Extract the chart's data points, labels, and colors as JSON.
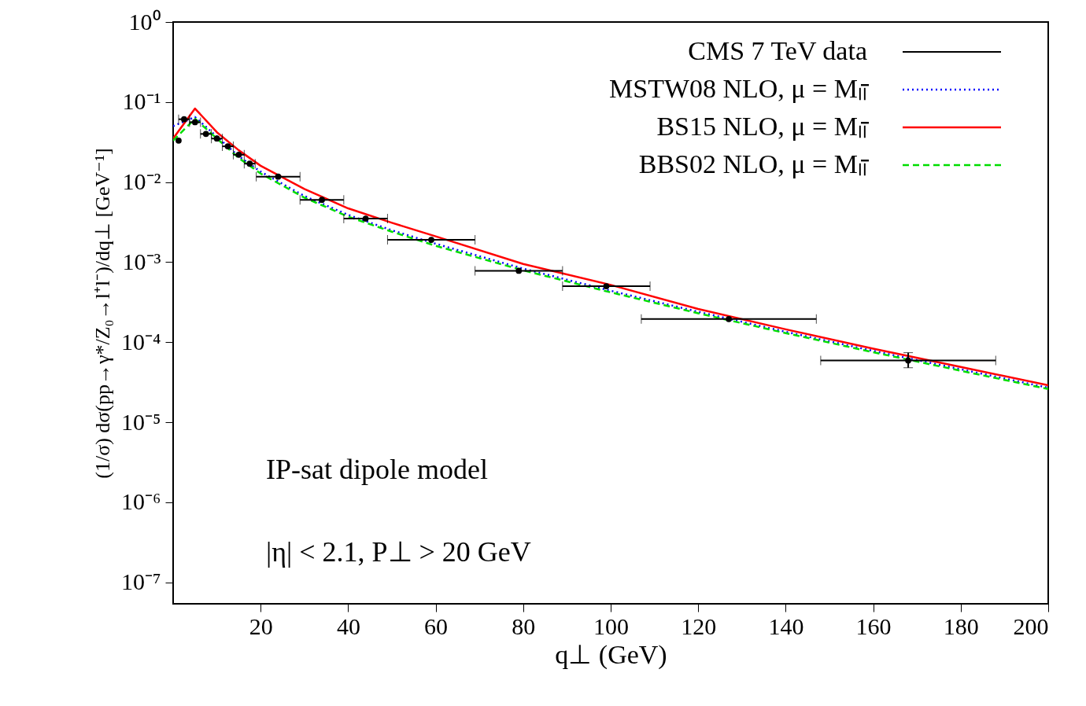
{
  "chart_data": {
    "type": "line",
    "xlabel": "q⊥ (GeV)",
    "ylabel": "(1/σ) dσ(pp→γ*/Z₀→l⁺l⁻)/dq⊥ [GeV⁻¹]",
    "log": "y",
    "xlim": [
      0,
      200
    ],
    "xticks": [
      20,
      40,
      60,
      80,
      100,
      120,
      140,
      160,
      180,
      200
    ],
    "ylim": [
      5.4e-08,
      1
    ],
    "yticks": [
      {
        "value": 1,
        "label": "10⁰"
      },
      {
        "value": 0.1,
        "label": "10⁻¹"
      },
      {
        "value": 0.01,
        "label": "10⁻²"
      },
      {
        "value": 0.001,
        "label": "10⁻³"
      },
      {
        "value": 0.0001,
        "label": "10⁻⁴"
      },
      {
        "value": 1e-05,
        "label": "10⁻⁵"
      },
      {
        "value": 1e-06,
        "label": "10⁻⁶"
      },
      {
        "value": 1e-07,
        "label": "10⁻⁷"
      }
    ],
    "grid": false,
    "legend": "top right",
    "annotations": [
      "IP-sat dipole model",
      "|η| < 2.1, P⊥ > 20 GeV"
    ],
    "series": [
      {
        "name": "CMS 7 TeV data",
        "type": "scatter",
        "color": "#000000",
        "marker": "circle",
        "x": [
          1.25,
          2.5,
          5,
          7.5,
          10,
          12.5,
          15,
          17.5,
          24,
          34,
          44,
          59,
          79,
          99,
          127,
          168
        ],
        "values": [
          0.033,
          0.061,
          0.056,
          0.04,
          0.035,
          0.028,
          0.022,
          0.017,
          0.0117,
          0.006,
          0.0035,
          0.0019,
          0.00078,
          0.0005,
          0.000195,
          5.9e-05
        ],
        "xerrors": [
          null,
          1.25,
          1.25,
          1.25,
          1.25,
          1.25,
          1.25,
          1.25,
          5,
          5,
          5,
          10,
          10,
          10,
          20,
          20
        ],
        "errors": [
          null,
          null,
          null,
          null,
          null,
          null,
          null,
          null,
          null,
          null,
          null,
          null,
          null,
          null,
          null,
          [
            4.8e-05,
            7.4e-05
          ]
        ]
      },
      {
        "name": "MSTW08 NLO, μ = Mₗₗ̄",
        "color": "#0000ff",
        "line_style": "dotted",
        "x": [
          0,
          5,
          10,
          15,
          20,
          30,
          40,
          50,
          60,
          80,
          100,
          120,
          140,
          160,
          180,
          200
        ],
        "values": [
          0.05,
          0.065,
          0.037,
          0.021,
          0.0135,
          0.0067,
          0.0039,
          0.0025,
          0.0017,
          0.00083,
          0.00044,
          0.00024,
          0.000135,
          7.8e-05,
          4.6e-05,
          2.7e-05
        ]
      },
      {
        "name": "BS15 NLO, μ = Mₗₗ̄",
        "color": "#ff0000",
        "line_style": "solid",
        "x": [
          0,
          5,
          10,
          15,
          20,
          30,
          40,
          50,
          60,
          80,
          100,
          120,
          140,
          160,
          180,
          200
        ],
        "values": [
          0.035,
          0.083,
          0.042,
          0.025,
          0.016,
          0.0082,
          0.0047,
          0.0031,
          0.0021,
          0.00095,
          0.00052,
          0.00026,
          0.000145,
          8.3e-05,
          4.9e-05,
          2.9e-05
        ]
      },
      {
        "name": "BBS02 NLO, μ = Mₗₗ̄",
        "color": "#00dd00",
        "line_style": "dashed",
        "x": [
          0,
          5,
          10,
          15,
          20,
          30,
          40,
          50,
          60,
          80,
          100,
          120,
          140,
          160,
          180,
          200
        ],
        "values": [
          0.033,
          0.062,
          0.035,
          0.02,
          0.0128,
          0.0064,
          0.0037,
          0.0024,
          0.0016,
          0.00079,
          0.00042,
          0.00023,
          0.00013,
          7.5e-05,
          4.4e-05,
          2.6e-05
        ]
      }
    ]
  }
}
